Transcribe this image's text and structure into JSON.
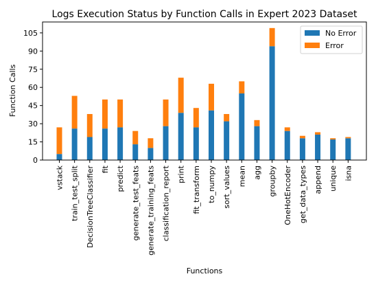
{
  "chart_data": {
    "type": "bar",
    "stacked": true,
    "title": "Logs Execution Status by Function Calls in Expert 2023 Dataset",
    "xlabel": "Functions",
    "ylabel": "Function Calls",
    "ylim": [
      0,
      114
    ],
    "yticks": [
      0,
      15,
      30,
      45,
      60,
      75,
      90,
      105
    ],
    "grid": false,
    "legend_position": "top-right",
    "categories": [
      "vstack",
      "train_test_split",
      "DecisionTreeClassifier",
      "fit",
      "predict",
      "generate_test_feats",
      "generate_training_feats",
      "classification_report",
      "print",
      "fit_transform",
      "to_numpy",
      "sort_values",
      "mean",
      "agg",
      "groupby",
      "OneHotEncoder",
      "get_data_types",
      "append",
      "unique",
      "isna"
    ],
    "series": [
      {
        "name": "No Error",
        "color": "#1f77b4",
        "values": [
          5,
          26,
          19,
          26,
          27,
          13,
          10,
          28,
          39,
          27,
          41,
          32,
          55,
          28,
          94,
          24,
          18,
          21,
          17,
          18
        ]
      },
      {
        "name": "Error",
        "color": "#ff7f0e",
        "values": [
          22,
          27,
          19,
          24,
          23,
          11,
          8,
          22,
          29,
          16,
          22,
          6,
          10,
          5,
          15,
          3,
          2,
          2,
          1,
          1
        ]
      }
    ]
  }
}
